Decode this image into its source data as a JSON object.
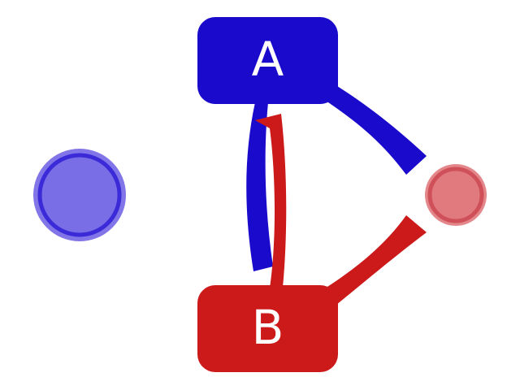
{
  "colors": {
    "background": "#ffffff",
    "blue": "#1a0acc",
    "red": "#cc1a1a",
    "blue_marker_fill": "#7a6ee6",
    "blue_marker_ring": "#3a2ad8",
    "red_marker_fill": "#e07a7e",
    "red_marker_ring": "#d0505a"
  },
  "nodes": {
    "a": {
      "label": "A",
      "color": "#1a0acc"
    },
    "b": {
      "label": "B",
      "color": "#cc1a1a"
    }
  },
  "edges": [
    {
      "from": "A",
      "to": "B",
      "color": "#1a0acc"
    },
    {
      "from": "B",
      "to": "A",
      "color": "#cc1a1a"
    },
    {
      "from": "A",
      "to": "red-marker",
      "color": "#1a0acc"
    },
    {
      "from": "B",
      "to": "red-marker",
      "color": "#cc1a1a"
    }
  ],
  "markers": [
    {
      "name": "blue-marker",
      "fill": "#7a6ee6",
      "ring": "#3a2ad8"
    },
    {
      "name": "red-marker",
      "fill": "#e07a7e",
      "ring": "#d0505a"
    }
  ]
}
